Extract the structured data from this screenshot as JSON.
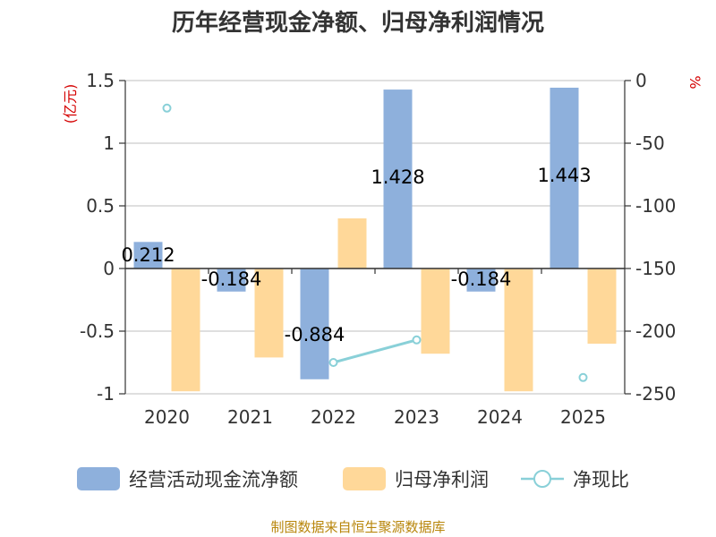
{
  "chart_data": {
    "type": "bar",
    "title": "历年经营现金净额、归母净利润情况",
    "categories": [
      "2020",
      "2021",
      "2022",
      "2023",
      "2024",
      "2025"
    ],
    "y_left": {
      "unit": "(亿元)",
      "ylim": [
        -1,
        1.5
      ],
      "ticks": [
        "1.5",
        "1",
        "0.5",
        "0",
        "-0.5",
        "-1"
      ]
    },
    "y_right": {
      "unit": "%",
      "ylim": [
        -250,
        0
      ],
      "ticks": [
        "0",
        "-50",
        "-100",
        "-150",
        "-200",
        "-250"
      ]
    },
    "series": [
      {
        "name": "经营活动现金流净额",
        "type": "bar",
        "axis": "left",
        "color": "#8eb0dc",
        "values": [
          0.212,
          -0.184,
          -0.884,
          1.428,
          -0.184,
          1.443
        ],
        "labels": [
          "0.212",
          "-0.184",
          "-0.884",
          "1.428",
          "-0.184",
          "1.443"
        ]
      },
      {
        "name": "归母净利润",
        "type": "bar",
        "axis": "left",
        "color": "#ffd899",
        "values": [
          -0.98,
          -0.71,
          0.4,
          -0.68,
          -0.98,
          -0.6
        ]
      },
      {
        "name": "净现比",
        "type": "line",
        "axis": "right",
        "color": "#89d0d8",
        "values": [
          -22,
          null,
          -225,
          -207,
          null,
          -237
        ]
      }
    ],
    "grid": true,
    "legend": "bottom",
    "source": "制图数据来自恒生聚源数据库"
  }
}
